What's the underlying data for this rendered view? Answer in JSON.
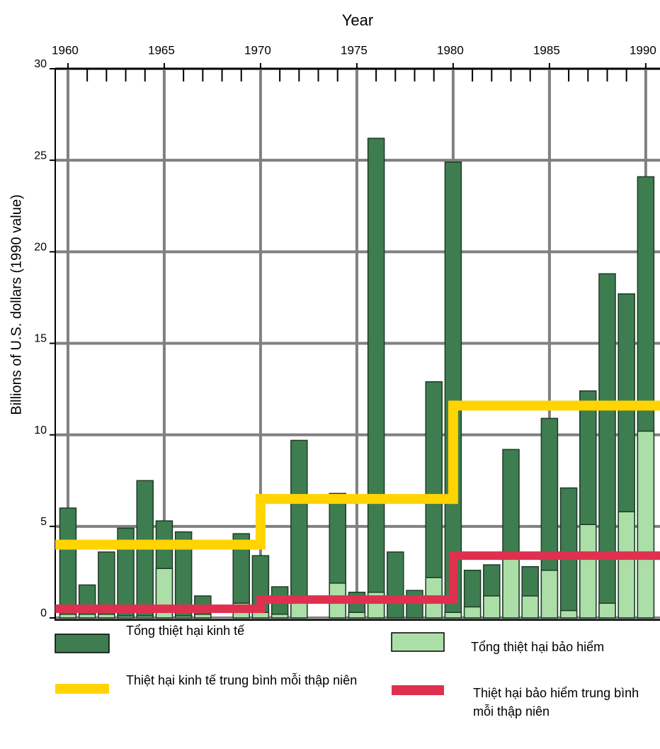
{
  "chart_data": {
    "type": "bar",
    "title": "Year",
    "y_label": "Billions of U.S. dollars (1990 value)",
    "x": [
      1960,
      1961,
      1962,
      1963,
      1964,
      1965,
      1966,
      1967,
      1968,
      1969,
      1970,
      1971,
      1972,
      1973,
      1974,
      1975,
      1976,
      1977,
      1978,
      1979,
      1980,
      1981,
      1982,
      1983,
      1984,
      1985,
      1986,
      1987,
      1988,
      1989,
      1990
    ],
    "xlim": [
      1959.34,
      1990.74
    ],
    "xticks": [
      1960,
      1965,
      1970,
      1975,
      1980,
      1985,
      1990
    ],
    "x_minor_ticks": [
      1961,
      1962,
      1963,
      1964,
      1966,
      1967,
      1968,
      1969,
      1971,
      1972,
      1973,
      1974,
      1976,
      1977,
      1978,
      1979,
      1981,
      1982,
      1983,
      1984,
      1986,
      1987,
      1988,
      1989
    ],
    "ylim": [
      0,
      30
    ],
    "yticks": [
      0,
      5,
      10,
      15,
      20,
      25,
      30
    ],
    "grid": true,
    "series": [
      {
        "name": "Tổng thiệt hại kinh tế",
        "type": "bar",
        "color": "#3e7d50",
        "values": [
          6.0,
          1.8,
          3.6,
          4.9,
          7.5,
          5.3,
          4.7,
          1.2,
          0,
          4.6,
          3.4,
          1.7,
          9.7,
          0,
          6.8,
          1.4,
          26.2,
          3.6,
          1.5,
          12.9,
          24.9,
          2.6,
          2.9,
          9.2,
          2.8,
          10.9,
          7.1,
          12.4,
          18.8,
          17.7,
          24.1
        ]
      },
      {
        "name": "Tổng thiệt hại bảo hiểm",
        "type": "bar",
        "color": "#acdfa8",
        "values": [
          0.2,
          0.2,
          0.2,
          0.1,
          0.1,
          2.7,
          0.1,
          0.2,
          0,
          0.8,
          0.3,
          0.2,
          0.9,
          0,
          1.9,
          0.3,
          1.4,
          0,
          0,
          2.2,
          0.3,
          0.6,
          1.2,
          3.3,
          1.2,
          2.6,
          0.4,
          5.1,
          0.8,
          5.8,
          10.2
        ]
      },
      {
        "name": "Thiệt hại kinh tế trung bình mỗi thập niên",
        "type": "step",
        "color": "#ffd400",
        "x": [
          1960,
          1970,
          1980
        ],
        "values": [
          4.0,
          6.5,
          11.6
        ]
      },
      {
        "name": "Thiệt hại bảo hiểm trung bình mỗi thập niên",
        "type": "step",
        "color": "#e0304f",
        "x": [
          1960,
          1970,
          1980
        ],
        "values": [
          0.5,
          1.0,
          3.4
        ]
      }
    ]
  }
}
